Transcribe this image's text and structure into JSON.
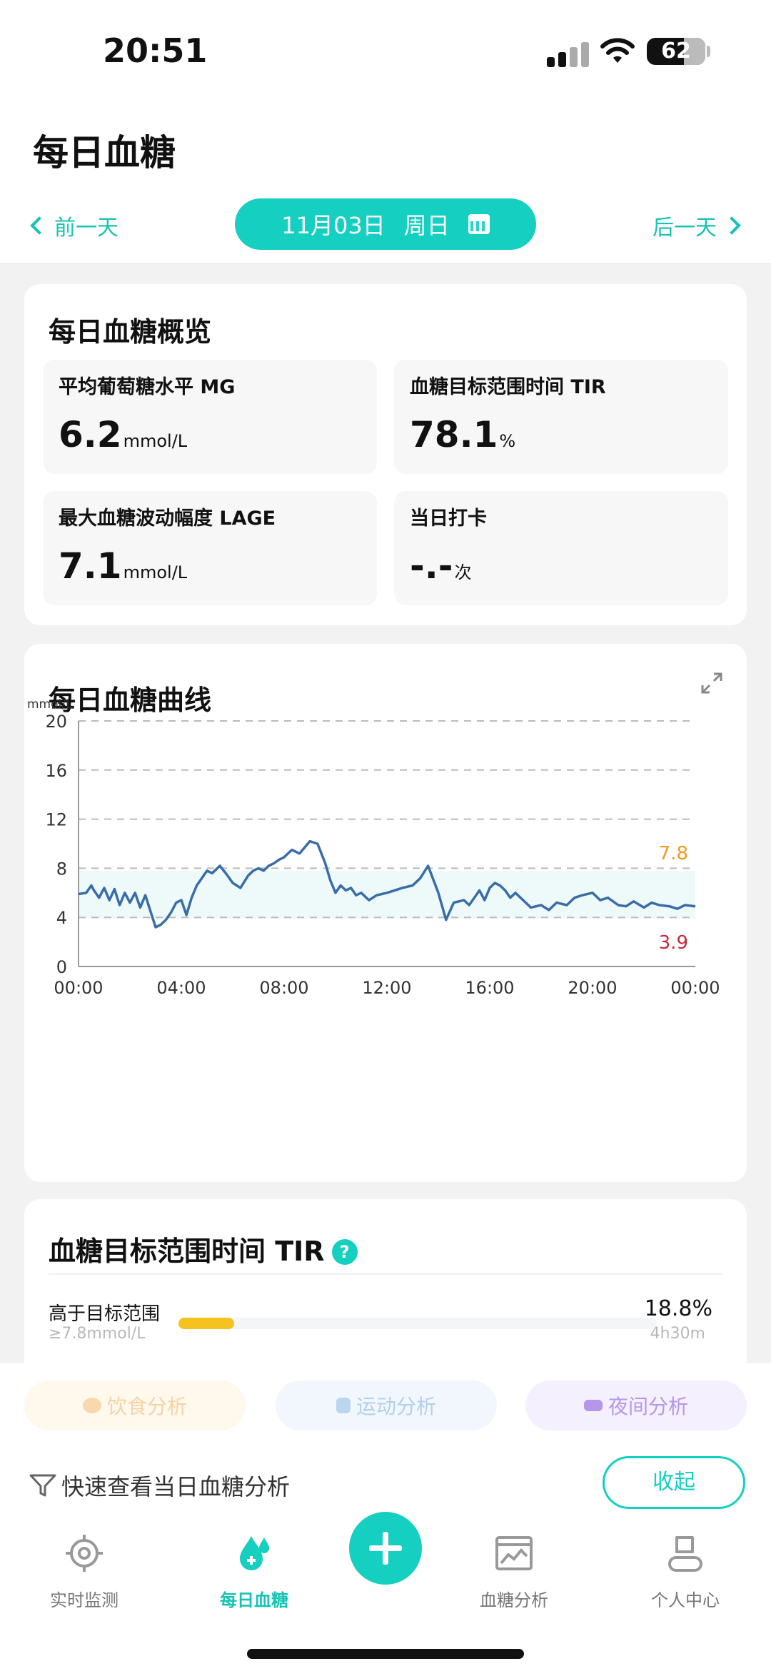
{
  "status_bar": {
    "time": "20:51",
    "battery": "62"
  },
  "header": {
    "title": "每日血糖",
    "prev_label": "前一天",
    "next_label": "后一天",
    "date_label": "11月03日",
    "weekday_label": "周日"
  },
  "overview": {
    "title": "每日血糖概览",
    "tiles": [
      {
        "label": "平均葡萄糖水平  MG",
        "value": "6.2",
        "unit": "mmol/L"
      },
      {
        "label": "血糖目标范围时间  TIR",
        "value": "78.1",
        "unit": "%"
      },
      {
        "label": "最大血糖波动幅度  LAGE",
        "value": "7.1",
        "unit": "mmol/L"
      },
      {
        "label": "当日打卡",
        "value": "-.-",
        "unit": "次"
      }
    ]
  },
  "curve": {
    "title": "每日血糖曲线",
    "chart_data": {
      "type": "line",
      "y_unit_label": "mmol/L",
      "ylim": [
        0,
        20
      ],
      "y_ticks": [
        "20",
        "16",
        "12",
        "8",
        "4",
        "0"
      ],
      "x_ticks": [
        "00:00",
        "04:00",
        "08:00",
        "12:00",
        "16:00",
        "20:00",
        "00:00"
      ],
      "target_range": {
        "low": 3.9,
        "high": 7.8,
        "low_label": "3.9",
        "high_label": "7.8"
      },
      "x_hours": [
        0,
        0.3,
        0.5,
        0.6,
        0.8,
        1,
        1.2,
        1.4,
        1.6,
        1.8,
        2,
        2.2,
        2.4,
        2.6,
        2.8,
        3,
        3.2,
        3.4,
        3.6,
        3.8,
        4,
        4.2,
        4.4,
        4.6,
        4.8,
        5,
        5.2,
        5.5,
        5.8,
        6,
        6.3,
        6.6,
        6.8,
        7,
        7.2,
        7.4,
        7.6,
        7.8,
        8,
        8.3,
        8.6,
        9,
        9.3,
        9.6,
        9.8,
        10,
        10.2,
        10.4,
        10.6,
        10.8,
        11,
        11.3,
        11.6,
        12,
        12.3,
        12.6,
        13,
        13.3,
        13.6,
        14,
        14.3,
        14.6,
        15,
        15.2,
        15.4,
        15.6,
        15.8,
        16,
        16.2,
        16.4,
        16.6,
        16.8,
        17,
        17.3,
        17.6,
        18,
        18.3,
        18.6,
        19,
        19.3,
        19.6,
        20,
        20.3,
        20.6,
        21,
        21.3,
        21.6,
        22,
        22.3,
        22.6,
        23,
        23.3,
        23.6,
        24
      ],
      "values": [
        5.9,
        6.0,
        6.6,
        6.2,
        5.6,
        6.4,
        5.4,
        6.3,
        5.0,
        6.0,
        5.2,
        6.0,
        4.8,
        5.8,
        4.5,
        3.2,
        3.4,
        3.8,
        4.4,
        5.2,
        5.4,
        4.2,
        5.6,
        6.6,
        7.2,
        7.8,
        7.6,
        8.2,
        7.4,
        6.8,
        6.4,
        7.4,
        7.8,
        8.0,
        7.8,
        8.2,
        8.4,
        8.7,
        8.9,
        9.5,
        9.2,
        10.2,
        10.0,
        8.4,
        7.0,
        6.0,
        6.6,
        6.2,
        6.4,
        5.8,
        6.0,
        5.4,
        5.8,
        6.0,
        6.2,
        6.4,
        6.6,
        7.2,
        8.2,
        6.0,
        3.8,
        5.2,
        5.4,
        5.0,
        5.6,
        6.2,
        5.4,
        6.4,
        6.8,
        6.6,
        6.2,
        5.6,
        6.0,
        5.4,
        4.8,
        5.0,
        4.6,
        5.2,
        5.0,
        5.6,
        5.8,
        6.0,
        5.4,
        5.6,
        5.0,
        4.9,
        5.3,
        4.8,
        5.2,
        5.0,
        4.9,
        4.7,
        5.0,
        4.9
      ]
    }
  },
  "tir": {
    "title": "血糖目标范围时间 TIR",
    "help_glyph": "?",
    "row": {
      "label": "高于目标范围",
      "sublabel": "≥7.8mmol/L",
      "percent": "18.8%",
      "duration": "4h30m",
      "fraction": 0.188,
      "color": "#f5c31d"
    }
  },
  "chips": {
    "diet": "饮食分析",
    "sport": "运动分析",
    "night": "夜间分析"
  },
  "quick": {
    "label": "快速查看当日血糖分析",
    "collapse_label": "收起"
  },
  "tabs": {
    "monitor": "实时监测",
    "daily": "每日血糖",
    "analysis": "血糖分析",
    "profile": "个人中心"
  },
  "colors": {
    "accent": "#15cfc0",
    "curve": "#3a6da8",
    "band": "#eefafa",
    "high": "#f09b16",
    "low": "#c8283c"
  }
}
